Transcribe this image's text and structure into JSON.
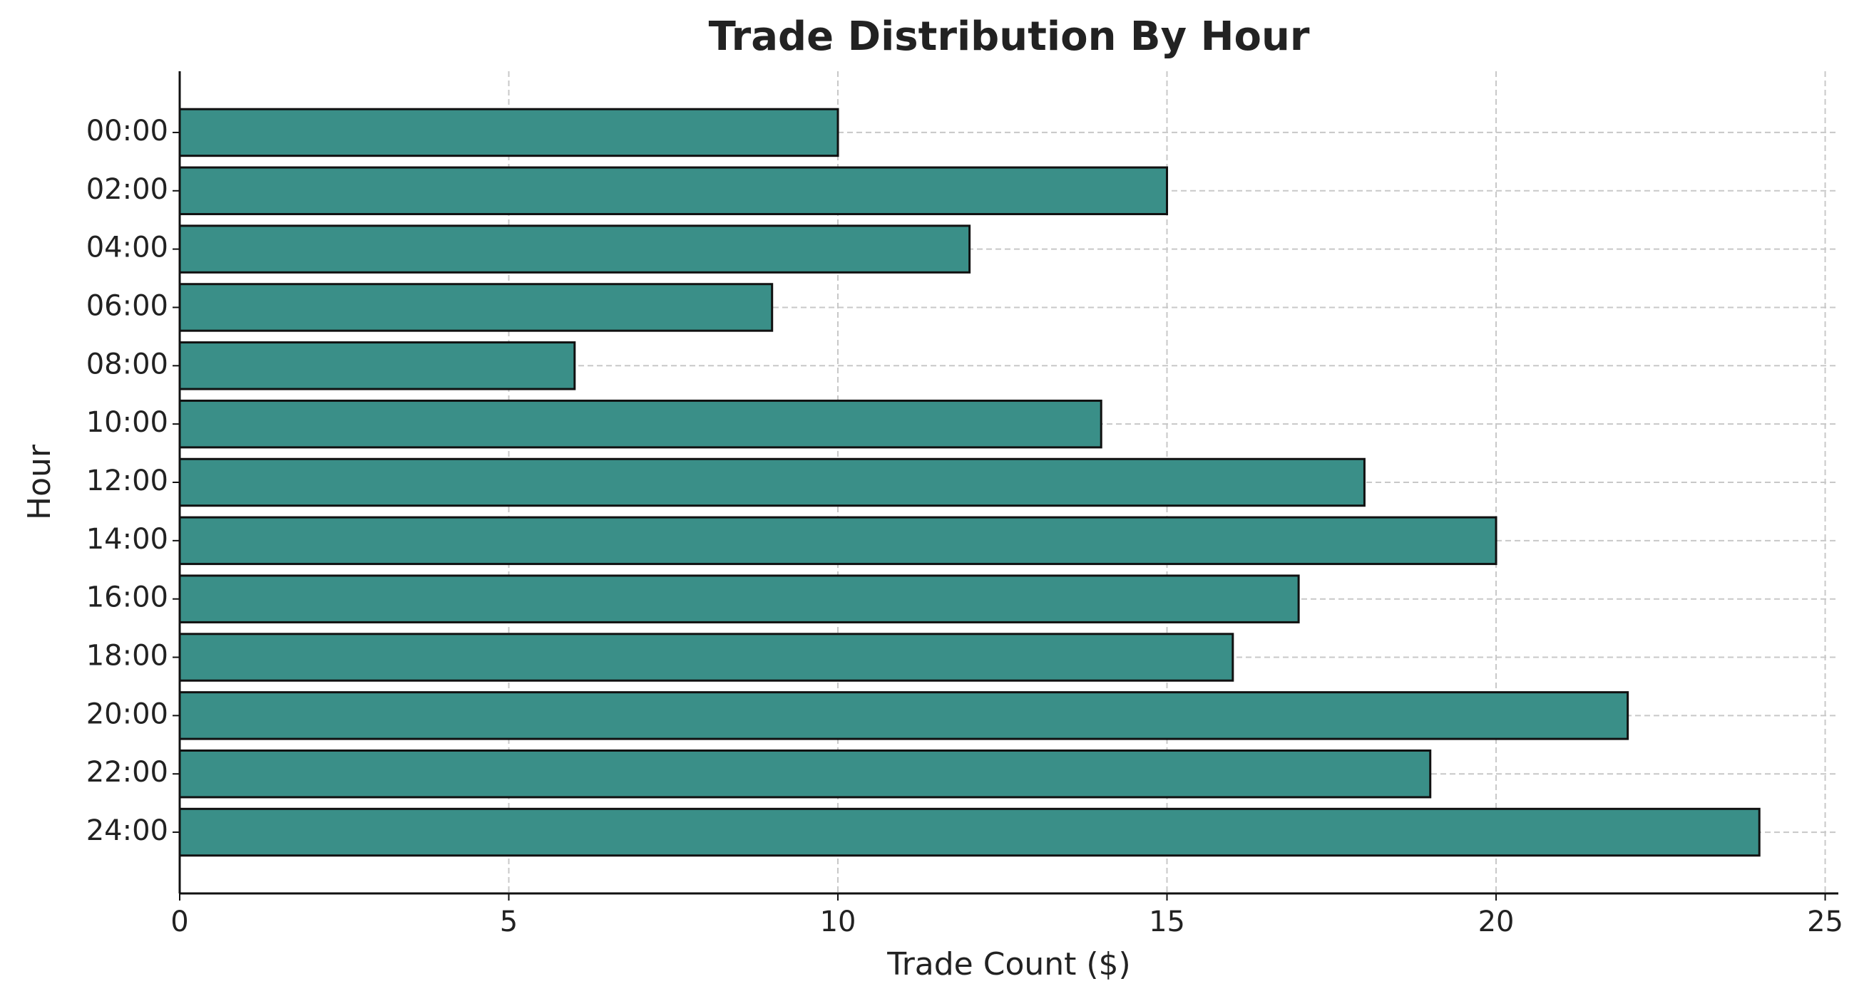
{
  "chart_data": {
    "type": "bar",
    "orientation": "horizontal",
    "title": "Trade Distribution By Hour",
    "x_label": "Trade Count ($)",
    "y_label": "Hour",
    "categories": [
      "00:00",
      "02:00",
      "04:00",
      "06:00",
      "08:00",
      "10:00",
      "12:00",
      "14:00",
      "16:00",
      "18:00",
      "20:00",
      "22:00",
      "24:00"
    ],
    "values": [
      10,
      15,
      12,
      9,
      6,
      14,
      18,
      20,
      17,
      16,
      22,
      19,
      24
    ],
    "color": "#3a8f88",
    "edge_color": "#111111",
    "xlim": [
      0,
      25.2
    ],
    "xticks": [
      0,
      5,
      10,
      15,
      20,
      25
    ],
    "grid": true
  }
}
